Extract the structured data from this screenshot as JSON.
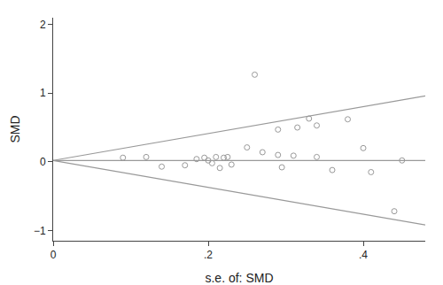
{
  "chart_data": {
    "type": "scatter",
    "xlabel": "s.e. of: SMD",
    "ylabel": "SMD",
    "xlim": [
      0,
      0.48
    ],
    "ylim": [
      -1.15,
      2.1
    ],
    "xticks": [
      0,
      {
        "value": 0.2,
        "label": ".2"
      },
      {
        "value": 0.4,
        "label": ".4"
      }
    ],
    "yticks": [
      {
        "value": -1,
        "label": "−1"
      },
      0,
      1,
      2
    ],
    "grid": false,
    "series": [
      {
        "type": "scatter",
        "color": "#999999",
        "marker": "circle-open",
        "x": [
          0.09,
          0.12,
          0.14,
          0.17,
          0.185,
          0.195,
          0.2,
          0.205,
          0.21,
          0.215,
          0.22,
          0.225,
          0.23,
          0.25,
          0.27,
          0.29,
          0.295,
          0.31,
          0.315,
          0.33,
          0.34,
          0.36,
          0.38,
          0.4,
          0.41,
          0.44,
          0.26,
          0.29,
          0.34,
          0.45
        ],
        "values": [
          0.06,
          0.07,
          -0.07,
          -0.05,
          0.04,
          0.06,
          0.02,
          -0.02,
          0.07,
          -0.09,
          0.06,
          0.07,
          -0.04,
          0.21,
          0.14,
          0.1,
          -0.08,
          0.09,
          0.5,
          0.63,
          0.07,
          -0.12,
          0.62,
          0.2,
          -0.15,
          -0.72,
          1.27,
          0.47,
          0.53,
          0.02
        ]
      },
      {
        "type": "line",
        "color": "#999999",
        "line_style": "solid",
        "x": [
          0,
          0.48
        ],
        "values": [
          0.02,
          0.9608
        ]
      },
      {
        "type": "line",
        "color": "#999999",
        "line_style": "solid",
        "x": [
          0,
          0.48
        ],
        "values": [
          0.02,
          -0.9208
        ]
      },
      {
        "type": "line",
        "color": "#999999",
        "line_style": "solid",
        "x": [
          0,
          0.48
        ],
        "values": [
          0.02,
          0.02
        ]
      }
    ]
  }
}
